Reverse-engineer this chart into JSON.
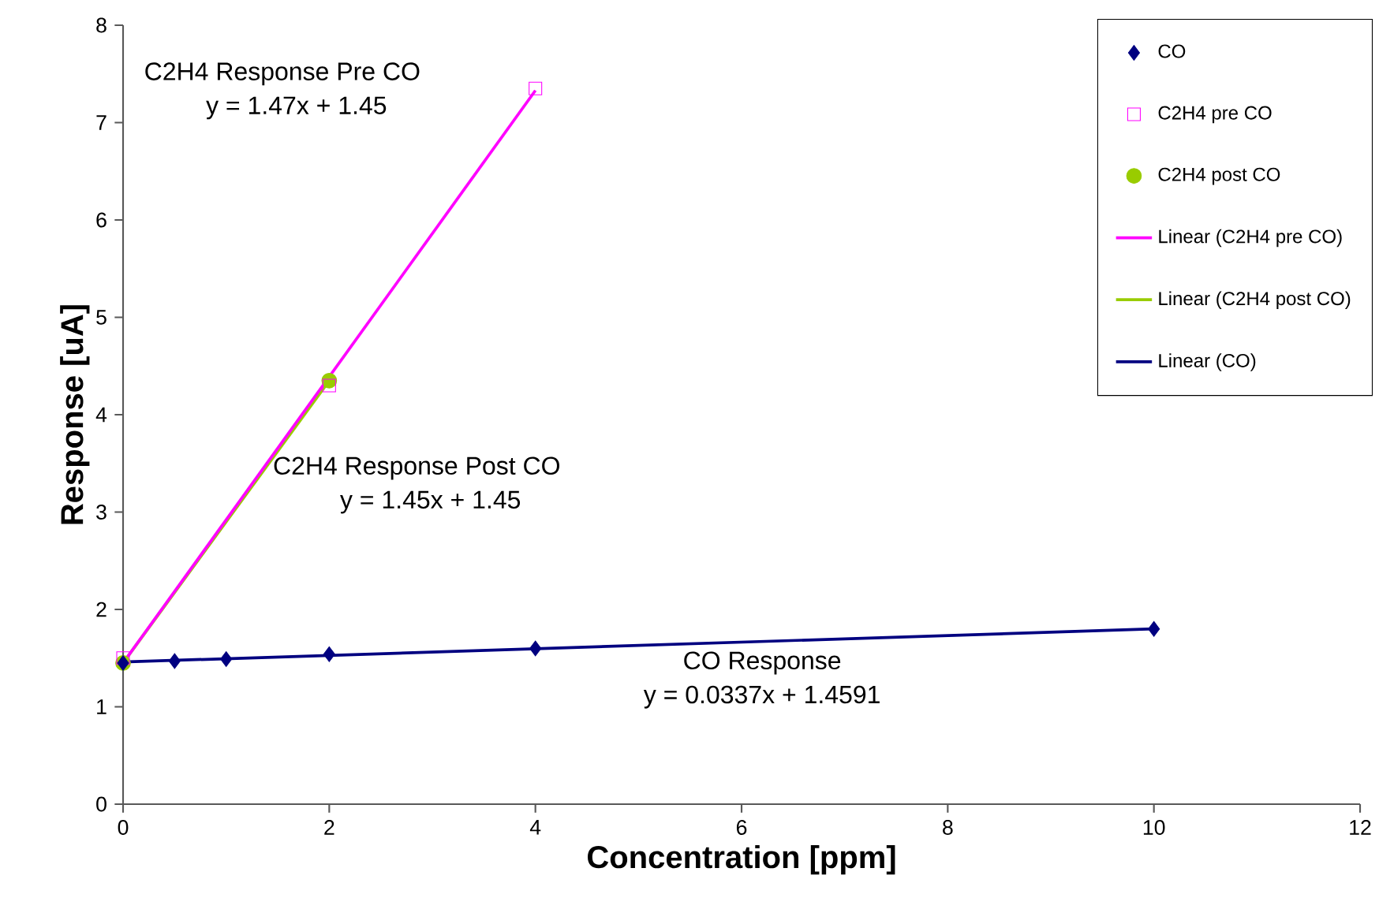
{
  "chart_data": {
    "type": "scatter",
    "xlabel": "Concentration [ppm]",
    "ylabel": "Response [uA]",
    "xlim": [
      0,
      12
    ],
    "xticks": [
      0,
      2,
      4,
      6,
      8,
      10,
      12
    ],
    "ylim": [
      0,
      8
    ],
    "yticks": [
      0,
      1,
      2,
      3,
      4,
      5,
      6,
      7,
      8
    ],
    "grid": false,
    "legend": "top right",
    "series": [
      {
        "name": "CO",
        "type": "scatter",
        "marker": "diamond",
        "color": "#000080",
        "x": [
          0,
          0.5,
          1,
          2,
          4,
          10
        ],
        "values": [
          1.45,
          1.47,
          1.49,
          1.54,
          1.6,
          1.8
        ]
      },
      {
        "name": "C2H4 pre CO",
        "type": "scatter",
        "marker": "square",
        "color": "#ff00ff",
        "x": [
          0,
          2,
          4
        ],
        "values": [
          1.5,
          4.3,
          7.35
        ]
      },
      {
        "name": "C2H4 post CO",
        "type": "scatter",
        "marker": "circle",
        "color": "#99cc00",
        "x": [
          0,
          2
        ],
        "values": [
          1.45,
          4.35
        ]
      },
      {
        "name": "Linear (C2H4 pre CO)",
        "type": "line",
        "marker": "none",
        "color": "#ff00ff",
        "x": [
          0,
          4
        ],
        "values": [
          1.45,
          7.33
        ]
      },
      {
        "name": "Linear (C2H4 post CO)",
        "type": "line",
        "marker": "none",
        "color": "#99cc00",
        "x": [
          0,
          2
        ],
        "values": [
          1.45,
          4.35
        ]
      },
      {
        "name": "Linear (CO)",
        "type": "line",
        "marker": "none",
        "color": "#000080",
        "x": [
          0,
          10
        ],
        "values": [
          1.46,
          1.8
        ]
      }
    ],
    "annotations": [
      "C2H4 Response Pre CO",
      "y = 1.47x + 1.45",
      "C2H4 Response Post CO",
      "y = 1.45x + 1.45",
      "CO Response",
      "y = 0.0337x + 1.4591"
    ]
  }
}
